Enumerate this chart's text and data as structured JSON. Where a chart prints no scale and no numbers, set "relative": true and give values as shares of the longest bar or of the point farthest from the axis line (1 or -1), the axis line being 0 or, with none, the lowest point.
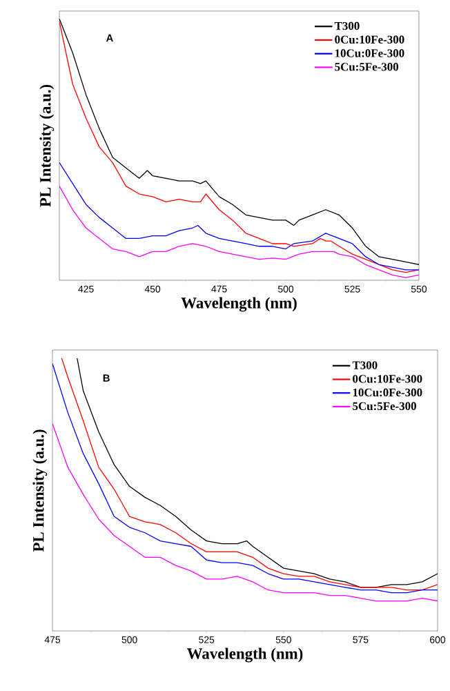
{
  "chart_data": [
    {
      "type": "line",
      "relative": true,
      "xlabel": "Wavelength (nm)",
      "ylabel": "PL Intensity (a.u.)",
      "annotations": [
        "A"
      ],
      "legend": "top right",
      "xlim": [
        415,
        550
      ],
      "xticks": [
        425,
        450,
        475,
        500,
        525,
        550
      ],
      "series": [
        {
          "name": "T300",
          "color": "#000000",
          "x": [
            415,
            420,
            425,
            430,
            435,
            440,
            445,
            448,
            450,
            455,
            460,
            465,
            468,
            470,
            475,
            480,
            485,
            490,
            495,
            500,
            503,
            505,
            510,
            515,
            520,
            525,
            530,
            535,
            540,
            545,
            550
          ],
          "values": [
            1.0,
            0.87,
            0.71,
            0.58,
            0.47,
            0.43,
            0.39,
            0.42,
            0.4,
            0.39,
            0.38,
            0.38,
            0.37,
            0.38,
            0.32,
            0.29,
            0.25,
            0.24,
            0.23,
            0.23,
            0.21,
            0.23,
            0.25,
            0.27,
            0.25,
            0.2,
            0.13,
            0.09,
            0.08,
            0.07,
            0.06
          ]
        },
        {
          "name": "0Cu:10Fe-300",
          "color": "#ff0000",
          "x": [
            415,
            420,
            425,
            430,
            435,
            440,
            445,
            450,
            455,
            460,
            465,
            468,
            470,
            475,
            480,
            485,
            490,
            495,
            500,
            503,
            510,
            513,
            515,
            517,
            520,
            525,
            530,
            535,
            540,
            545,
            550
          ],
          "values": [
            0.99,
            0.75,
            0.62,
            0.51,
            0.45,
            0.36,
            0.33,
            0.32,
            0.3,
            0.31,
            0.3,
            0.3,
            0.33,
            0.27,
            0.23,
            0.18,
            0.16,
            0.14,
            0.14,
            0.13,
            0.14,
            0.16,
            0.15,
            0.15,
            0.13,
            0.1,
            0.08,
            0.06,
            0.04,
            0.03,
            0.04
          ]
        },
        {
          "name": "10Cu:0Fe-300",
          "color": "#0000ff",
          "x": [
            415,
            420,
            425,
            430,
            435,
            440,
            445,
            450,
            455,
            460,
            465,
            467,
            470,
            475,
            480,
            485,
            490,
            495,
            500,
            503,
            510,
            515,
            520,
            525,
            530,
            535,
            540,
            545,
            550
          ],
          "values": [
            0.45,
            0.37,
            0.29,
            0.24,
            0.2,
            0.16,
            0.16,
            0.17,
            0.17,
            0.19,
            0.2,
            0.21,
            0.18,
            0.16,
            0.15,
            0.14,
            0.13,
            0.13,
            0.12,
            0.14,
            0.15,
            0.18,
            0.16,
            0.14,
            0.09,
            0.06,
            0.05,
            0.04,
            0.04
          ]
        },
        {
          "name": "5Cu:5Fe-300",
          "color": "#ff00ff",
          "x": [
            415,
            420,
            425,
            430,
            435,
            440,
            445,
            450,
            455,
            460,
            465,
            470,
            475,
            480,
            485,
            490,
            495,
            500,
            505,
            510,
            515,
            518,
            520,
            525,
            530,
            535,
            540,
            545,
            550
          ],
          "values": [
            0.36,
            0.27,
            0.2,
            0.16,
            0.12,
            0.11,
            0.09,
            0.11,
            0.11,
            0.13,
            0.14,
            0.13,
            0.11,
            0.1,
            0.09,
            0.08,
            0.085,
            0.08,
            0.1,
            0.11,
            0.11,
            0.11,
            0.1,
            0.09,
            0.06,
            0.04,
            0.02,
            0.01,
            0.02
          ]
        }
      ]
    },
    {
      "type": "line",
      "relative": true,
      "xlabel": "Wavelength (nm)",
      "ylabel": "PL Intensity (a.u.)",
      "annotations": [
        "B"
      ],
      "legend": "top right",
      "xlim": [
        475,
        600
      ],
      "xticks": [
        475,
        500,
        525,
        550,
        575,
        600
      ],
      "series": [
        {
          "name": "T300",
          "color": "#000000",
          "x": [
            483,
            485,
            490,
            495,
            500,
            505,
            510,
            515,
            520,
            525,
            530,
            535,
            538,
            540,
            545,
            550,
            555,
            560,
            565,
            570,
            575,
            580,
            585,
            590,
            595,
            600
          ],
          "values": [
            1.0,
            0.88,
            0.73,
            0.61,
            0.53,
            0.49,
            0.46,
            0.42,
            0.37,
            0.33,
            0.32,
            0.32,
            0.33,
            0.31,
            0.27,
            0.23,
            0.22,
            0.21,
            0.19,
            0.18,
            0.16,
            0.16,
            0.17,
            0.17,
            0.18,
            0.21
          ]
        },
        {
          "name": "0Cu:10Fe-300",
          "color": "#ff0000",
          "x": [
            478,
            480,
            485,
            490,
            495,
            500,
            505,
            510,
            515,
            520,
            525,
            530,
            535,
            540,
            545,
            550,
            555,
            560,
            565,
            570,
            575,
            580,
            585,
            590,
            595,
            600
          ],
          "values": [
            1.0,
            0.93,
            0.77,
            0.6,
            0.52,
            0.42,
            0.4,
            0.39,
            0.36,
            0.32,
            0.29,
            0.29,
            0.29,
            0.27,
            0.23,
            0.21,
            0.2,
            0.2,
            0.18,
            0.17,
            0.16,
            0.16,
            0.16,
            0.15,
            0.15,
            0.17
          ]
        },
        {
          "name": "10Cu:0Fe-300",
          "color": "#0000ff",
          "x": [
            475,
            480,
            485,
            490,
            495,
            500,
            505,
            510,
            515,
            520,
            525,
            530,
            535,
            540,
            545,
            550,
            555,
            560,
            565,
            570,
            575,
            580,
            585,
            590,
            595,
            600
          ],
          "values": [
            0.98,
            0.8,
            0.65,
            0.54,
            0.42,
            0.38,
            0.36,
            0.33,
            0.32,
            0.31,
            0.26,
            0.25,
            0.25,
            0.24,
            0.21,
            0.19,
            0.19,
            0.18,
            0.17,
            0.16,
            0.15,
            0.15,
            0.14,
            0.14,
            0.15,
            0.15
          ]
        },
        {
          "name": "5Cu:5Fe-300",
          "color": "#ff00ff",
          "x": [
            475,
            480,
            485,
            490,
            495,
            500,
            505,
            510,
            515,
            520,
            525,
            530,
            535,
            540,
            545,
            550,
            555,
            560,
            565,
            570,
            575,
            580,
            585,
            590,
            595,
            600
          ],
          "values": [
            0.76,
            0.6,
            0.5,
            0.41,
            0.35,
            0.31,
            0.27,
            0.27,
            0.24,
            0.22,
            0.19,
            0.19,
            0.2,
            0.18,
            0.15,
            0.14,
            0.14,
            0.14,
            0.13,
            0.13,
            0.12,
            0.11,
            0.11,
            0.11,
            0.12,
            0.11
          ]
        }
      ]
    }
  ]
}
